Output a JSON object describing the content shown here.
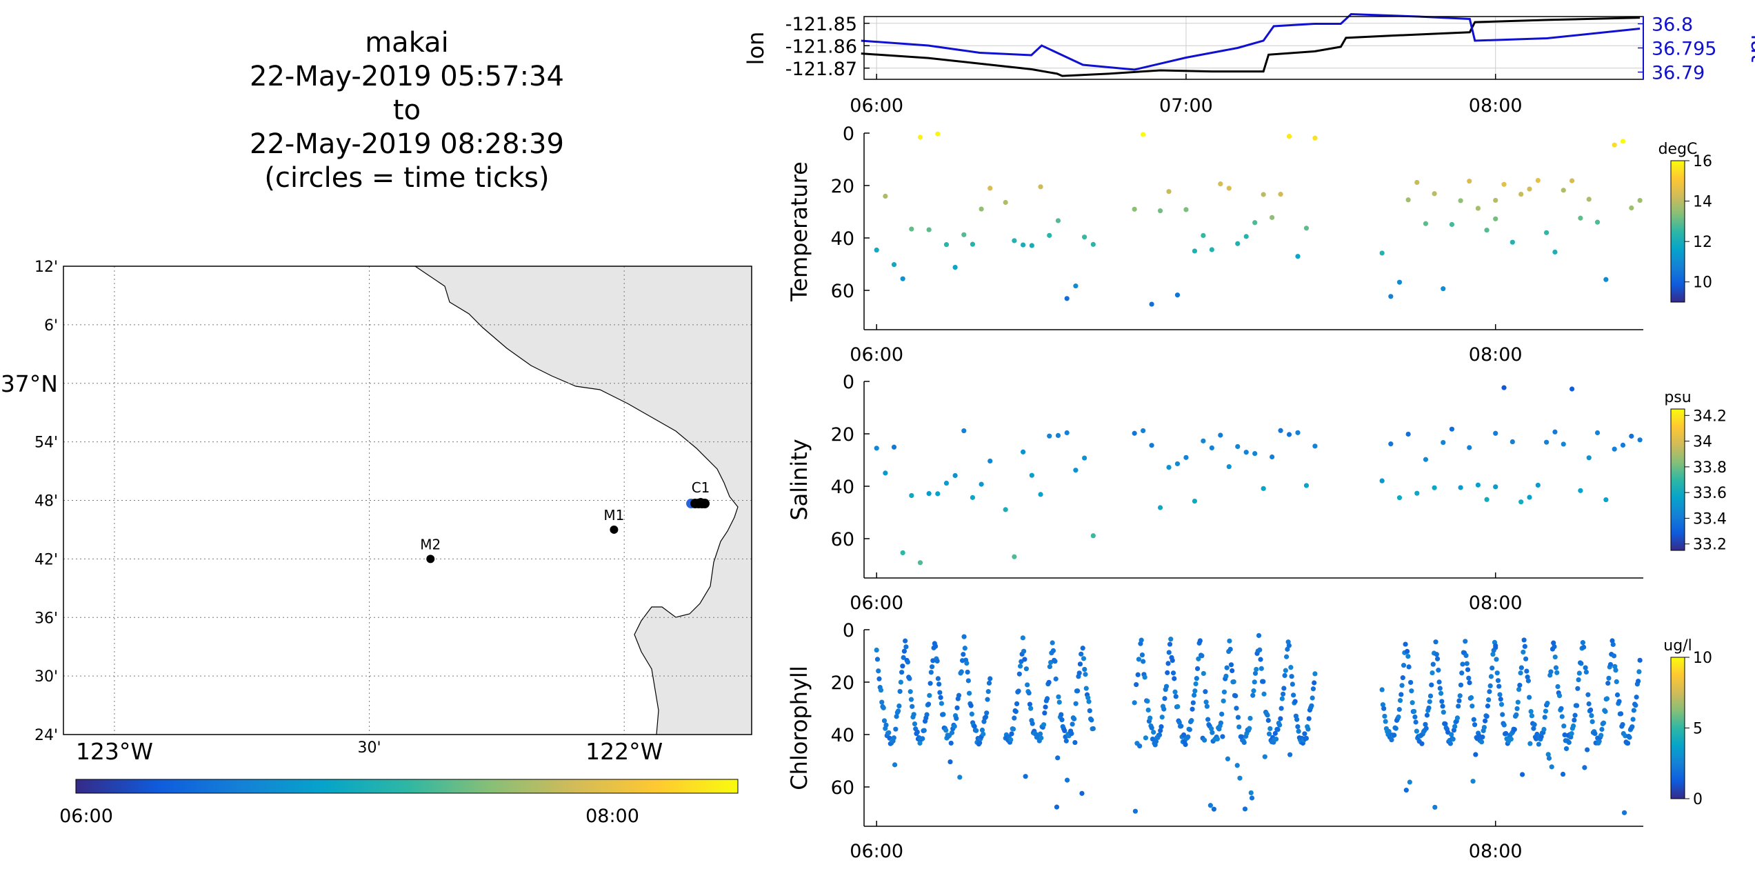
{
  "title": {
    "lines": [
      "makai",
      "22-May-2019 05:57:34",
      "to",
      "22-May-2019 08:28:39",
      "(circles = time ticks)"
    ]
  },
  "colors": {
    "land": "#e6e6e6",
    "track_lon": "#000000",
    "track_lat": "#1010d0",
    "parula": [
      "#352a87",
      "#0f5cdd",
      "#1481d6",
      "#06a4ca",
      "#2eb7a4",
      "#87bf77",
      "#d1bb59",
      "#fec832",
      "#f9fb0e"
    ]
  },
  "map": {
    "lat_ticks": [
      {
        "v": 37.2,
        "label": "12'"
      },
      {
        "v": 37.1,
        "label": "6'"
      },
      {
        "v": 37.0,
        "label": "37°N"
      },
      {
        "v": 36.9,
        "label": "54'"
      },
      {
        "v": 36.8,
        "label": "48'"
      },
      {
        "v": 36.7,
        "label": "42'"
      },
      {
        "v": 36.6,
        "label": "36'"
      },
      {
        "v": 36.5,
        "label": "30'"
      },
      {
        "v": 36.4,
        "label": "24'"
      }
    ],
    "lon_ticks": [
      {
        "v": -123.0,
        "label": "123°W"
      },
      {
        "v": -122.5,
        "label": "30'"
      },
      {
        "v": -122.0,
        "label": "122°W"
      }
    ],
    "lon_range": [
      -123.1,
      -121.75
    ],
    "lat_range": [
      36.4,
      37.2
    ],
    "stations": [
      {
        "name": "C1",
        "lon": -121.85,
        "lat": 36.797
      },
      {
        "name": "M1",
        "lon": -122.02,
        "lat": 36.75
      },
      {
        "name": "M2",
        "lon": -122.38,
        "lat": 36.7
      }
    ],
    "colorbar_ticks": [
      "06:00",
      "08:00"
    ]
  },
  "chart_data": [
    {
      "type": "line",
      "name": "position",
      "xlabel": "",
      "ylabel": "lon",
      "ylabel_right": "lat",
      "xlim": [
        "05:57:34",
        "08:28:39"
      ],
      "x_ticks": [
        "06:00",
        "07:00",
        "08:00"
      ],
      "y_ticks_left": [
        "-121.85",
        "-121.86",
        "-121.87"
      ],
      "y_ticks_right": [
        "36.8",
        "36.795",
        "36.79"
      ],
      "ylim_left": [
        -121.875,
        -121.847
      ],
      "ylim_right": [
        36.7885,
        36.8015
      ],
      "grid": true,
      "series": [
        {
          "axis": "left",
          "x": [
            "05:57",
            "06:10",
            "06:20",
            "06:30",
            "06:35",
            "06:36",
            "06:45",
            "06:55",
            "07:05",
            "07:12",
            "07:15",
            "07:16",
            "07:25",
            "07:30",
            "07:31",
            "07:40",
            "07:50",
            "07:55",
            "07:56",
            "08:10",
            "08:28"
          ],
          "y": [
            -121.8635,
            -121.8655,
            -121.868,
            -121.8705,
            -121.8725,
            -121.8735,
            -121.8725,
            -121.871,
            -121.8715,
            -121.8715,
            -121.8715,
            -121.864,
            -121.8625,
            -121.8605,
            -121.8565,
            -121.8555,
            -121.8545,
            -121.854,
            -121.8495,
            -121.8485,
            -121.8475
          ]
        },
        {
          "axis": "right",
          "x": [
            "05:57",
            "06:10",
            "06:20",
            "06:30",
            "06:32",
            "06:40",
            "06:50",
            "07:00",
            "07:10",
            "07:15",
            "07:17",
            "07:25",
            "07:30",
            "07:32",
            "07:45",
            "07:55",
            "07:56",
            "08:10",
            "08:28"
          ],
          "y": [
            36.7965,
            36.7955,
            36.794,
            36.7935,
            36.7955,
            36.7915,
            36.7905,
            36.793,
            36.795,
            36.7965,
            36.7995,
            36.8,
            36.8,
            36.802,
            36.8015,
            36.801,
            36.7965,
            36.797,
            36.799
          ]
        }
      ]
    },
    {
      "type": "scatter",
      "name": "Temperature",
      "ylabel": "Temperature",
      "x_ticks": [
        "06:00",
        "08:00"
      ],
      "y_ticks": [
        "0",
        "20",
        "40",
        "60"
      ],
      "ylim": [
        0,
        75
      ],
      "colorbar": {
        "unit": "degC",
        "ticks": [
          "16",
          "14",
          "12",
          "10"
        ],
        "range": [
          9,
          16
        ]
      },
      "surface": 18,
      "bottom_range": [
        40,
        70
      ]
    },
    {
      "type": "scatter",
      "name": "Salinity",
      "ylabel": "Salinity",
      "x_ticks": [
        "06:00",
        "08:00"
      ],
      "y_ticks": [
        "0",
        "20",
        "40",
        "60"
      ],
      "ylim": [
        0,
        75
      ],
      "colorbar": {
        "unit": "psu",
        "ticks": [
          "34.2",
          "34",
          "33.8",
          "33.6",
          "33.4",
          "33.2"
        ],
        "range": [
          33.15,
          34.25
        ]
      },
      "surface": 18,
      "bottom_range": [
        40,
        70
      ]
    },
    {
      "type": "scatter",
      "name": "Chlorophyll",
      "ylabel": "Chlorophyll",
      "x_ticks": [
        "06:00",
        "08:00"
      ],
      "y_ticks": [
        "0",
        "20",
        "40",
        "60"
      ],
      "ylim": [
        0,
        75
      ],
      "colorbar": {
        "unit": "ug/l",
        "ticks": [
          "10",
          "5",
          "0"
        ],
        "range": [
          0,
          10
        ]
      },
      "surface": 1,
      "bottom_range": [
        40,
        70
      ]
    }
  ]
}
